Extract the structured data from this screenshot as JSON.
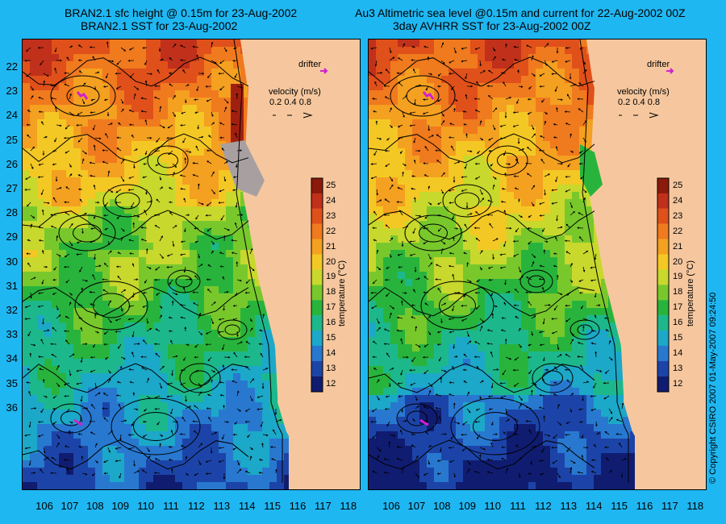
{
  "titles": {
    "left_line1": "BRAN2.1 sfc height @ 0.15m for 23-Aug-2002",
    "left_line2": "BRAN2.1 SST for 23-Aug-2002",
    "right_line1": "Au3 Altimetric sea level  @0.15m and current for 22-Aug-2002 00Z",
    "right_line2": "3day AVHRR SST for 23-Aug-2002 00Z"
  },
  "y_ticks": [
    "22",
    "23",
    "24",
    "25",
    "26",
    "27",
    "28",
    "29",
    "30",
    "31",
    "32",
    "33",
    "34",
    "35",
    "36"
  ],
  "x_ticks": [
    "106",
    "107",
    "108",
    "109",
    "110",
    "111",
    "112",
    "113",
    "114",
    "115",
    "116",
    "117",
    "118"
  ],
  "legend": {
    "drifter": "drifter",
    "velocity": "velocity (m/s)",
    "velocity_scale": "0.2 0.4 0.8"
  },
  "colorbar": {
    "ticks": [
      "25",
      "24",
      "23",
      "22",
      "21",
      "20",
      "19",
      "18",
      "17",
      "16",
      "15",
      "14",
      "13",
      "12"
    ],
    "label": "temperature (°C)",
    "stops": [
      "#8b1a0c",
      "#c0301a",
      "#e0501a",
      "#f07a1e",
      "#f4a020",
      "#f4c824",
      "#c8d82c",
      "#78c82c",
      "#28b43c",
      "#1cb88c",
      "#1ca8c8",
      "#2878d0",
      "#1c44a8",
      "#101c70"
    ]
  },
  "copyright": "© Copyright CSIRO 2007   01-May-2007 09:24:50",
  "colors": {
    "background": "#1fb7f2",
    "land": "#f6c79e",
    "drifter": "#d020d0"
  }
}
